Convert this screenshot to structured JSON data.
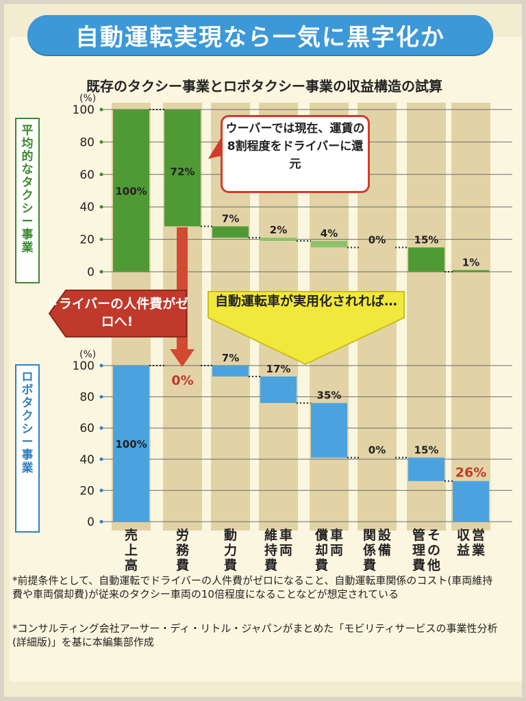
{
  "title": "自動運転実現なら一気に黒字化か",
  "subtitle": "既存のタクシー事業とロボタクシー事業の収益構造の試算",
  "top_panel_label": "平均的なタクシー事業",
  "bottom_panel_label": "ロボタクシー事業",
  "unit_label": "(%)",
  "callouts": {
    "uber": "ウーバーでは現在、運賃の8割程度をドライバーに還元",
    "driver_cost_zero": "ドライバーの人件費がゼロへ!",
    "if_autonomous": "自動運転車が実用化されれば…"
  },
  "notes": [
    "*前提条件として、自動運転でドライバーの人件費がゼロになること、自動運転車関係のコスト(車両維持費や車両償却費)が従来のタクシー車両の10倍程度になることなどが想定されている",
    "*コンサルティング会社アーサー・ディ・リトル・ジャパンがまとめた「モビリティサービスの事業性分析(詳細版)」を基に本編集部作成"
  ],
  "chart_data": [
    {
      "type": "bar",
      "subtype": "waterfall",
      "title": "平均的なタクシー事業",
      "categories": [
        "売上高",
        "労務費",
        "動力費",
        "車両維持費",
        "車両償却費",
        "設備関係費",
        "その他管理費",
        "営業収益"
      ],
      "values": [
        100,
        72,
        7,
        2,
        4,
        0,
        15,
        1
      ],
      "value_labels": [
        "100%",
        "72%",
        "7%",
        "2%",
        "4%",
        "0%",
        "15%",
        "1%"
      ],
      "ylabel": "(%)",
      "ylim": [
        0,
        100
      ],
      "yticks": [
        0,
        20,
        40,
        60,
        80,
        100
      ],
      "colors": {
        "bar": "#4f9a34",
        "light_bar": "#8cc26a",
        "highlight": "#c0392b"
      }
    },
    {
      "type": "bar",
      "subtype": "waterfall",
      "title": "ロボタクシー事業",
      "categories": [
        "売上高",
        "労務費",
        "動力費",
        "車両維持費",
        "車両償却費",
        "設備関係費",
        "その他管理費",
        "営業収益"
      ],
      "values": [
        100,
        0,
        7,
        17,
        35,
        0,
        15,
        26
      ],
      "value_labels": [
        "100%",
        "0%",
        "7%",
        "17%",
        "35%",
        "0%",
        "15%",
        "26%"
      ],
      "ylabel": "(%)",
      "ylim": [
        0,
        100
      ],
      "yticks": [
        0,
        20,
        40,
        60,
        80,
        100
      ],
      "colors": {
        "bar": "#4aa3df",
        "highlight": "#c0392b"
      }
    }
  ],
  "x_labels": [
    "売上高",
    "労務費",
    "動力費",
    "車両\n維持費",
    "車両\n償却費",
    "設備\n関係費",
    "その他\n管理費",
    "営業\n収益"
  ]
}
